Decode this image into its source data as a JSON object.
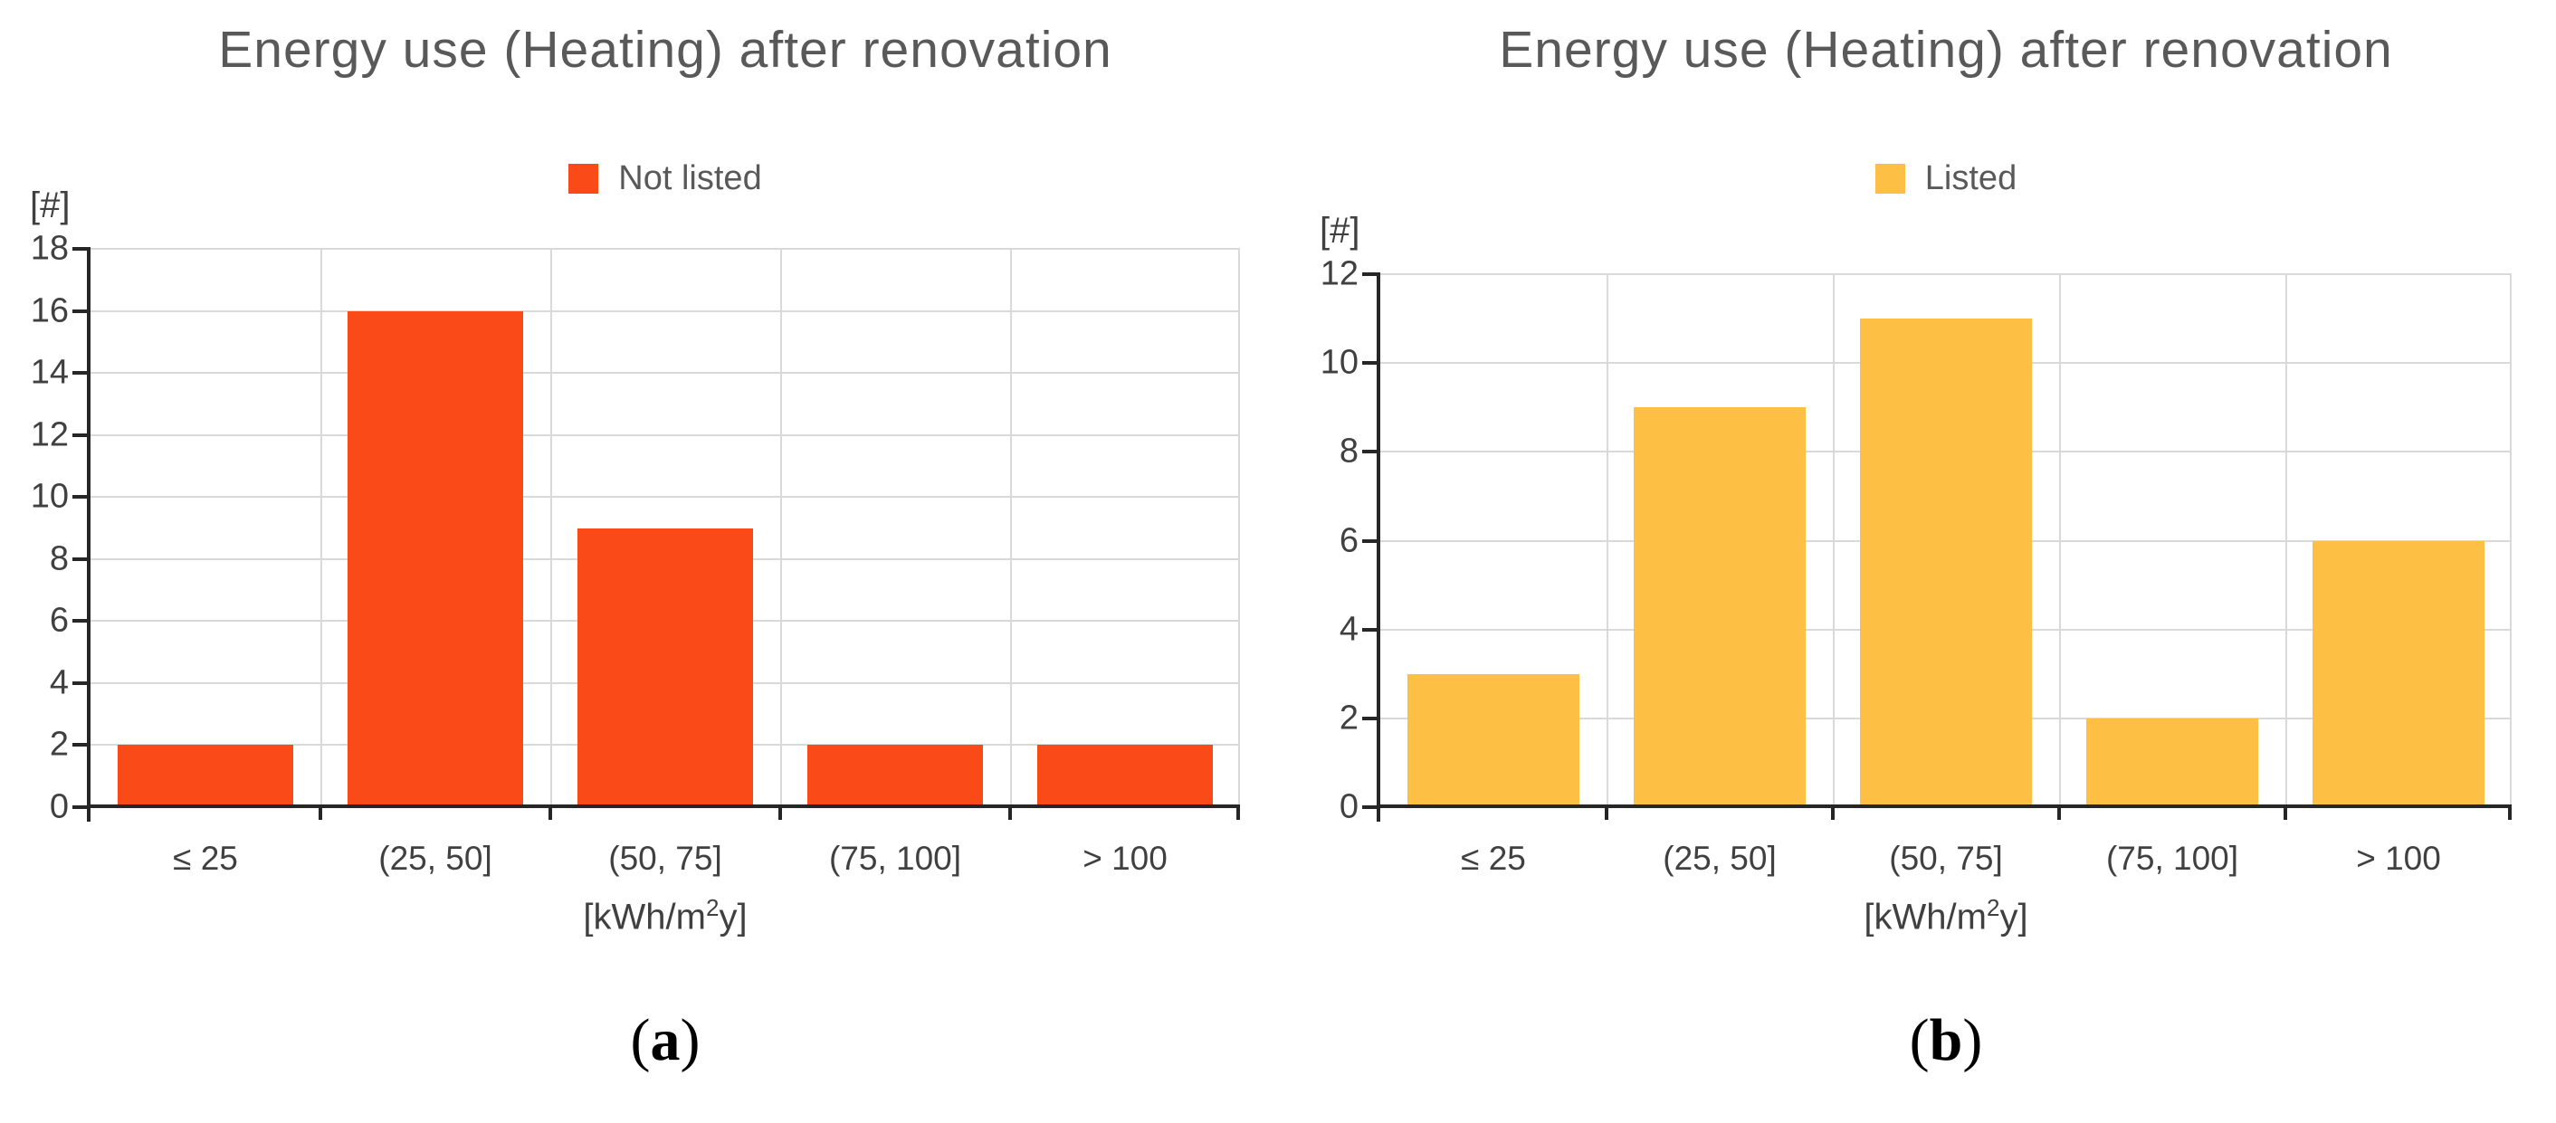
{
  "chart_data": [
    {
      "type": "bar",
      "title": "Energy use (Heating) after renovation",
      "legend": "Not listed",
      "legend_position": "top",
      "color": "#FA4A17",
      "categories": [
        "≤ 25",
        "(25, 50]",
        "(50, 75]",
        "(75, 100]",
        "> 100"
      ],
      "values": [
        2,
        16,
        9,
        2,
        2
      ],
      "ylabel": "[#]",
      "xlabel": "[kWh/m²y]",
      "xlabel_parts": {
        "pre": "[kWh/m",
        "sup": "2",
        "post": "y]"
      },
      "ylim": [
        0,
        18
      ],
      "ytick_step": 2,
      "grid": true,
      "caption": {
        "open": "(",
        "label": "a",
        "close": ")"
      }
    },
    {
      "type": "bar",
      "title": "Energy use (Heating) after renovation",
      "legend": "Listed",
      "legend_position": "top",
      "color": "#FDC044",
      "categories": [
        "≤ 25",
        "(25, 50]",
        "(50, 75]",
        "(75, 100]",
        "> 100"
      ],
      "values": [
        3,
        9,
        11,
        2,
        6
      ],
      "ylabel": "[#]",
      "xlabel": "[kWh/m²y]",
      "xlabel_parts": {
        "pre": "[kWh/m",
        "sup": "2",
        "post": "y]"
      },
      "ylim": [
        0,
        12
      ],
      "ytick_step": 2,
      "grid": true,
      "caption": {
        "open": "(",
        "label": "b",
        "close": ")"
      }
    }
  ]
}
